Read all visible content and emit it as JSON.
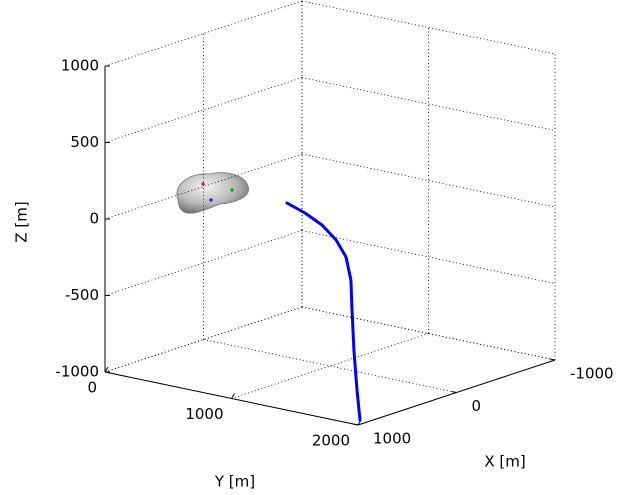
{
  "chart_data": {
    "type": "line3d",
    "xlabel": "X [m]",
    "ylabel": "Y [m]",
    "zlabel": "Z [m]",
    "xlim": [
      -1000,
      1000
    ],
    "ylim": [
      0,
      2000
    ],
    "zlim": [
      -1000,
      1000
    ],
    "xticks": [
      -1000,
      0,
      1000
    ],
    "yticks": [
      0,
      1000,
      2000
    ],
    "zticks": [
      -1000,
      -500,
      0,
      500,
      1000
    ],
    "grid": true,
    "series": [
      {
        "color": "#0000ff",
        "x": [
          557,
          617,
          689,
          772,
          823,
          833,
          817,
          814,
          834,
          898
        ],
        "y": [
          1094,
          1283,
          1473,
          1649,
          1767,
          1814,
          1810,
          1823,
          1863,
          1936
        ],
        "z": [
          200,
          180,
          150,
          100,
          20,
          -120,
          -320,
          -580,
          -830,
          -1000
        ]
      }
    ]
  }
}
